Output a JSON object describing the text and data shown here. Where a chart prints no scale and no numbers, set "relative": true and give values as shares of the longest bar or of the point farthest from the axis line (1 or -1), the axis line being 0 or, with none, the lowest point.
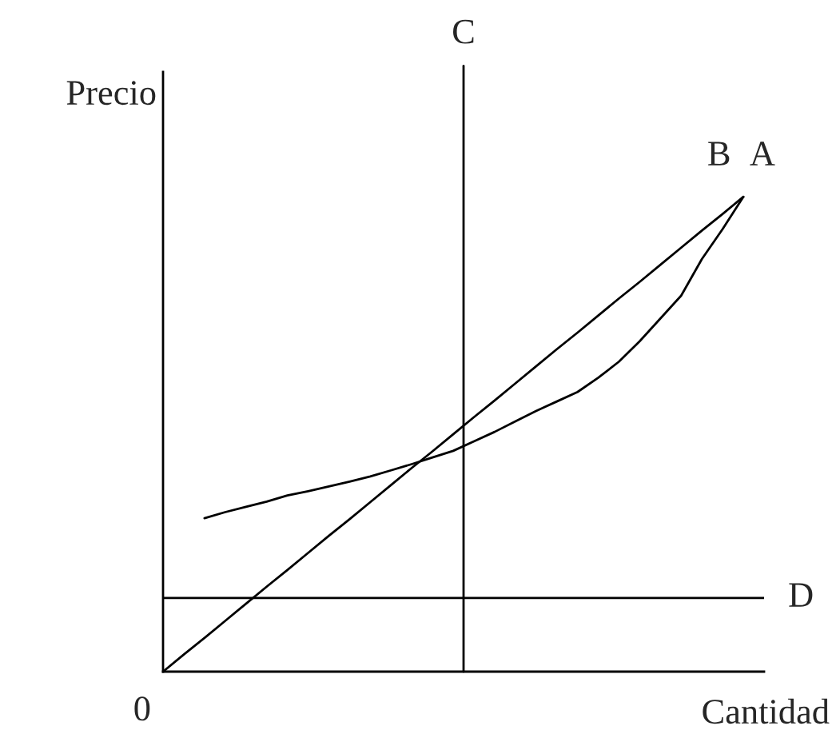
{
  "chart_data": {
    "type": "line",
    "relative": true,
    "xlabel": "Cantidad",
    "ylabel": "Precio",
    "annotations": [
      "0",
      "C"
    ],
    "categories": [
      null,
      null,
      null,
      null,
      null,
      null,
      null,
      null,
      null,
      null,
      null,
      null,
      null,
      null,
      null,
      null,
      null,
      null,
      null,
      null,
      null,
      null,
      null,
      null,
      null,
      null,
      null,
      null,
      null,
      null
    ],
    "series": [
      {
        "name": "A",
        "color": "#000000",
        "values": [
          null,
          null,
          0.323,
          0.336,
          0.347,
          0.358,
          0.371,
          0.38,
          0.39,
          0.4,
          0.411,
          0.424,
          0.437,
          0.451,
          0.465,
          0.485,
          0.505,
          0.527,
          0.549,
          0.569,
          0.589,
          0.619,
          0.653,
          0.696,
          0.744,
          0.792,
          0.869,
          0.932,
          1.0,
          null
        ]
      },
      {
        "name": "B",
        "color": "#000000",
        "values": [
          0,
          0.036,
          0.071,
          0.107,
          0.143,
          0.179,
          0.214,
          0.25,
          0.286,
          0.321,
          0.357,
          0.393,
          0.429,
          0.464,
          0.5,
          0.536,
          0.571,
          0.607,
          0.643,
          0.679,
          0.714,
          0.75,
          0.786,
          0.821,
          0.857,
          0.893,
          0.929,
          0.964,
          1.0,
          null
        ]
      }
    ],
    "ref_lines": [
      {
        "axis": "y",
        "value": 0.155,
        "label": "D",
        "color": "#000000"
      }
    ],
    "marker": "none",
    "line_style": "solid"
  }
}
